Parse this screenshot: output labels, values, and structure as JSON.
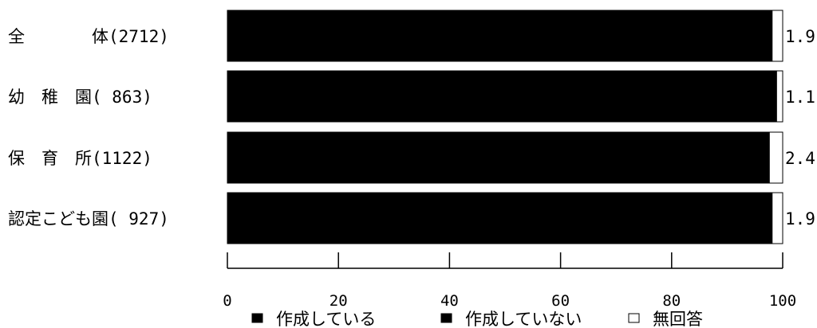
{
  "chart_data": {
    "type": "bar",
    "orientation": "horizontal",
    "stacked": true,
    "categories": [
      "全　　　　体(2712)",
      "幼　稚　園( 863)",
      "保　育　所(1122)",
      "認定こども園( 927)"
    ],
    "series": [
      {
        "name": "作成している",
        "values": [
          97.8,
          98.6,
          97.4,
          97.9
        ],
        "color": "#000000"
      },
      {
        "name": "作成していない",
        "values": [
          0.3,
          0.3,
          0.2,
          0.2
        ],
        "color": "#000000"
      },
      {
        "name": "無回答",
        "values": [
          1.9,
          1.1,
          2.4,
          1.9
        ],
        "color": "#ffffff"
      }
    ],
    "value_labels": [
      "1.9",
      "1.1",
      "2.4",
      "1.9"
    ],
    "xlim": [
      0,
      100
    ],
    "xticks": [
      0,
      20,
      40,
      60,
      80,
      100
    ],
    "legend_position": "bottom",
    "grid": false,
    "title": "",
    "xlabel": "",
    "ylabel": ""
  }
}
